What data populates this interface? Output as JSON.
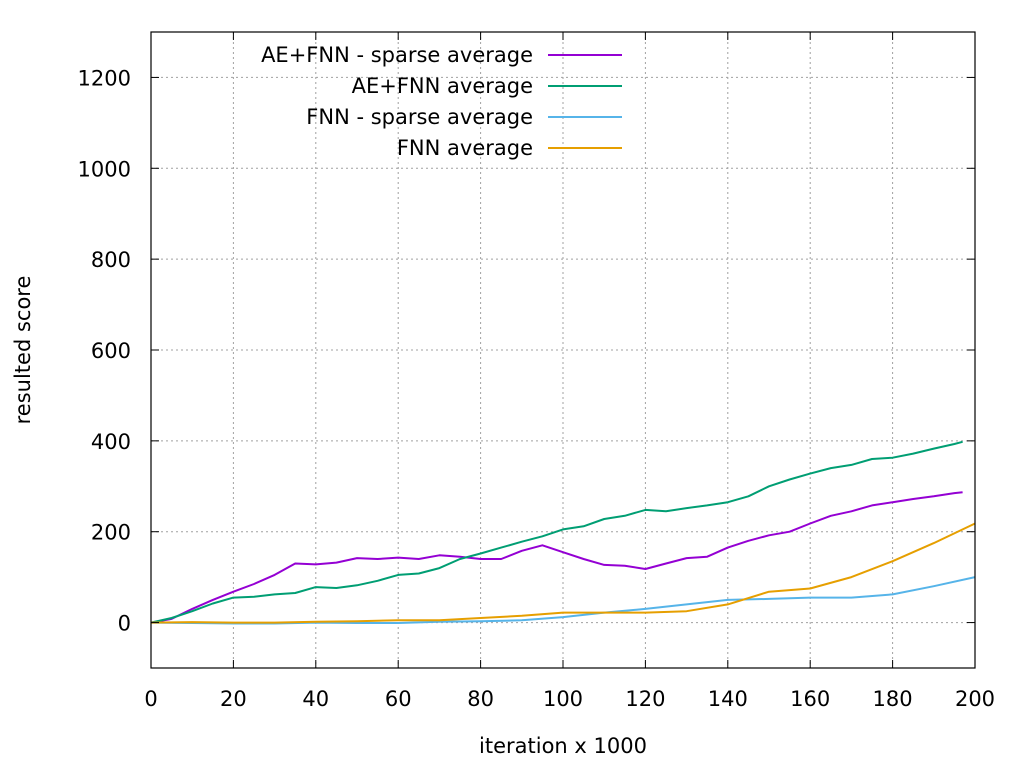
{
  "chart_data": {
    "type": "line",
    "title": "",
    "xlabel": "iteration x 1000",
    "ylabel": "resulted score",
    "xlim": [
      0,
      200
    ],
    "ylim": [
      -100,
      1300
    ],
    "xticks": [
      0,
      20,
      40,
      60,
      80,
      100,
      120,
      140,
      160,
      180,
      200
    ],
    "yticks": [
      0,
      200,
      400,
      600,
      800,
      1000,
      1200
    ],
    "grid": true,
    "legend_position": "top-left",
    "series": [
      {
        "name": "AE+FNN - sparse average",
        "color": "#9400d3",
        "x": [
          0,
          5,
          10,
          15,
          20,
          25,
          30,
          35,
          40,
          45,
          50,
          55,
          60,
          65,
          70,
          75,
          80,
          85,
          90,
          95,
          100,
          105,
          110,
          115,
          120,
          125,
          130,
          135,
          140,
          145,
          150,
          155,
          160,
          165,
          170,
          175,
          180,
          185,
          190,
          195,
          197
        ],
        "y": [
          0,
          8,
          30,
          50,
          68,
          85,
          105,
          130,
          128,
          132,
          142,
          140,
          143,
          140,
          148,
          145,
          140,
          140,
          158,
          170,
          155,
          140,
          127,
          125,
          118,
          130,
          142,
          145,
          165,
          180,
          192,
          200,
          218,
          235,
          245,
          258,
          265,
          272,
          278,
          285,
          287
        ]
      },
      {
        "name": "AE+FNN average",
        "color": "#009e73",
        "x": [
          0,
          5,
          10,
          15,
          20,
          25,
          30,
          35,
          40,
          45,
          50,
          55,
          60,
          65,
          70,
          75,
          80,
          85,
          90,
          95,
          100,
          105,
          110,
          115,
          120,
          125,
          130,
          135,
          140,
          145,
          150,
          155,
          160,
          165,
          170,
          175,
          180,
          185,
          190,
          195,
          197
        ],
        "y": [
          0,
          10,
          25,
          42,
          55,
          57,
          62,
          65,
          78,
          76,
          82,
          92,
          105,
          108,
          120,
          140,
          152,
          165,
          178,
          190,
          205,
          212,
          228,
          235,
          248,
          245,
          252,
          258,
          265,
          278,
          300,
          315,
          328,
          340,
          347,
          360,
          363,
          372,
          383,
          393,
          398
        ]
      },
      {
        "name": "FNN - sparse average",
        "color": "#56b4e9",
        "x": [
          0,
          10,
          20,
          30,
          40,
          50,
          60,
          70,
          80,
          90,
          100,
          110,
          120,
          130,
          140,
          150,
          160,
          170,
          180,
          190,
          200
        ],
        "y": [
          0,
          -1,
          -2,
          -2,
          0,
          -1,
          -1,
          2,
          3,
          5,
          12,
          22,
          30,
          40,
          50,
          52,
          55,
          55,
          62,
          80,
          100
        ]
      },
      {
        "name": "FNN average",
        "color": "#e69f00",
        "x": [
          0,
          10,
          20,
          30,
          40,
          50,
          60,
          70,
          80,
          90,
          100,
          110,
          120,
          130,
          140,
          150,
          160,
          170,
          180,
          190,
          200
        ],
        "y": [
          0,
          1,
          0,
          0,
          2,
          3,
          5,
          5,
          10,
          15,
          22,
          22,
          22,
          25,
          40,
          68,
          75,
          100,
          135,
          175,
          218
        ]
      }
    ]
  }
}
